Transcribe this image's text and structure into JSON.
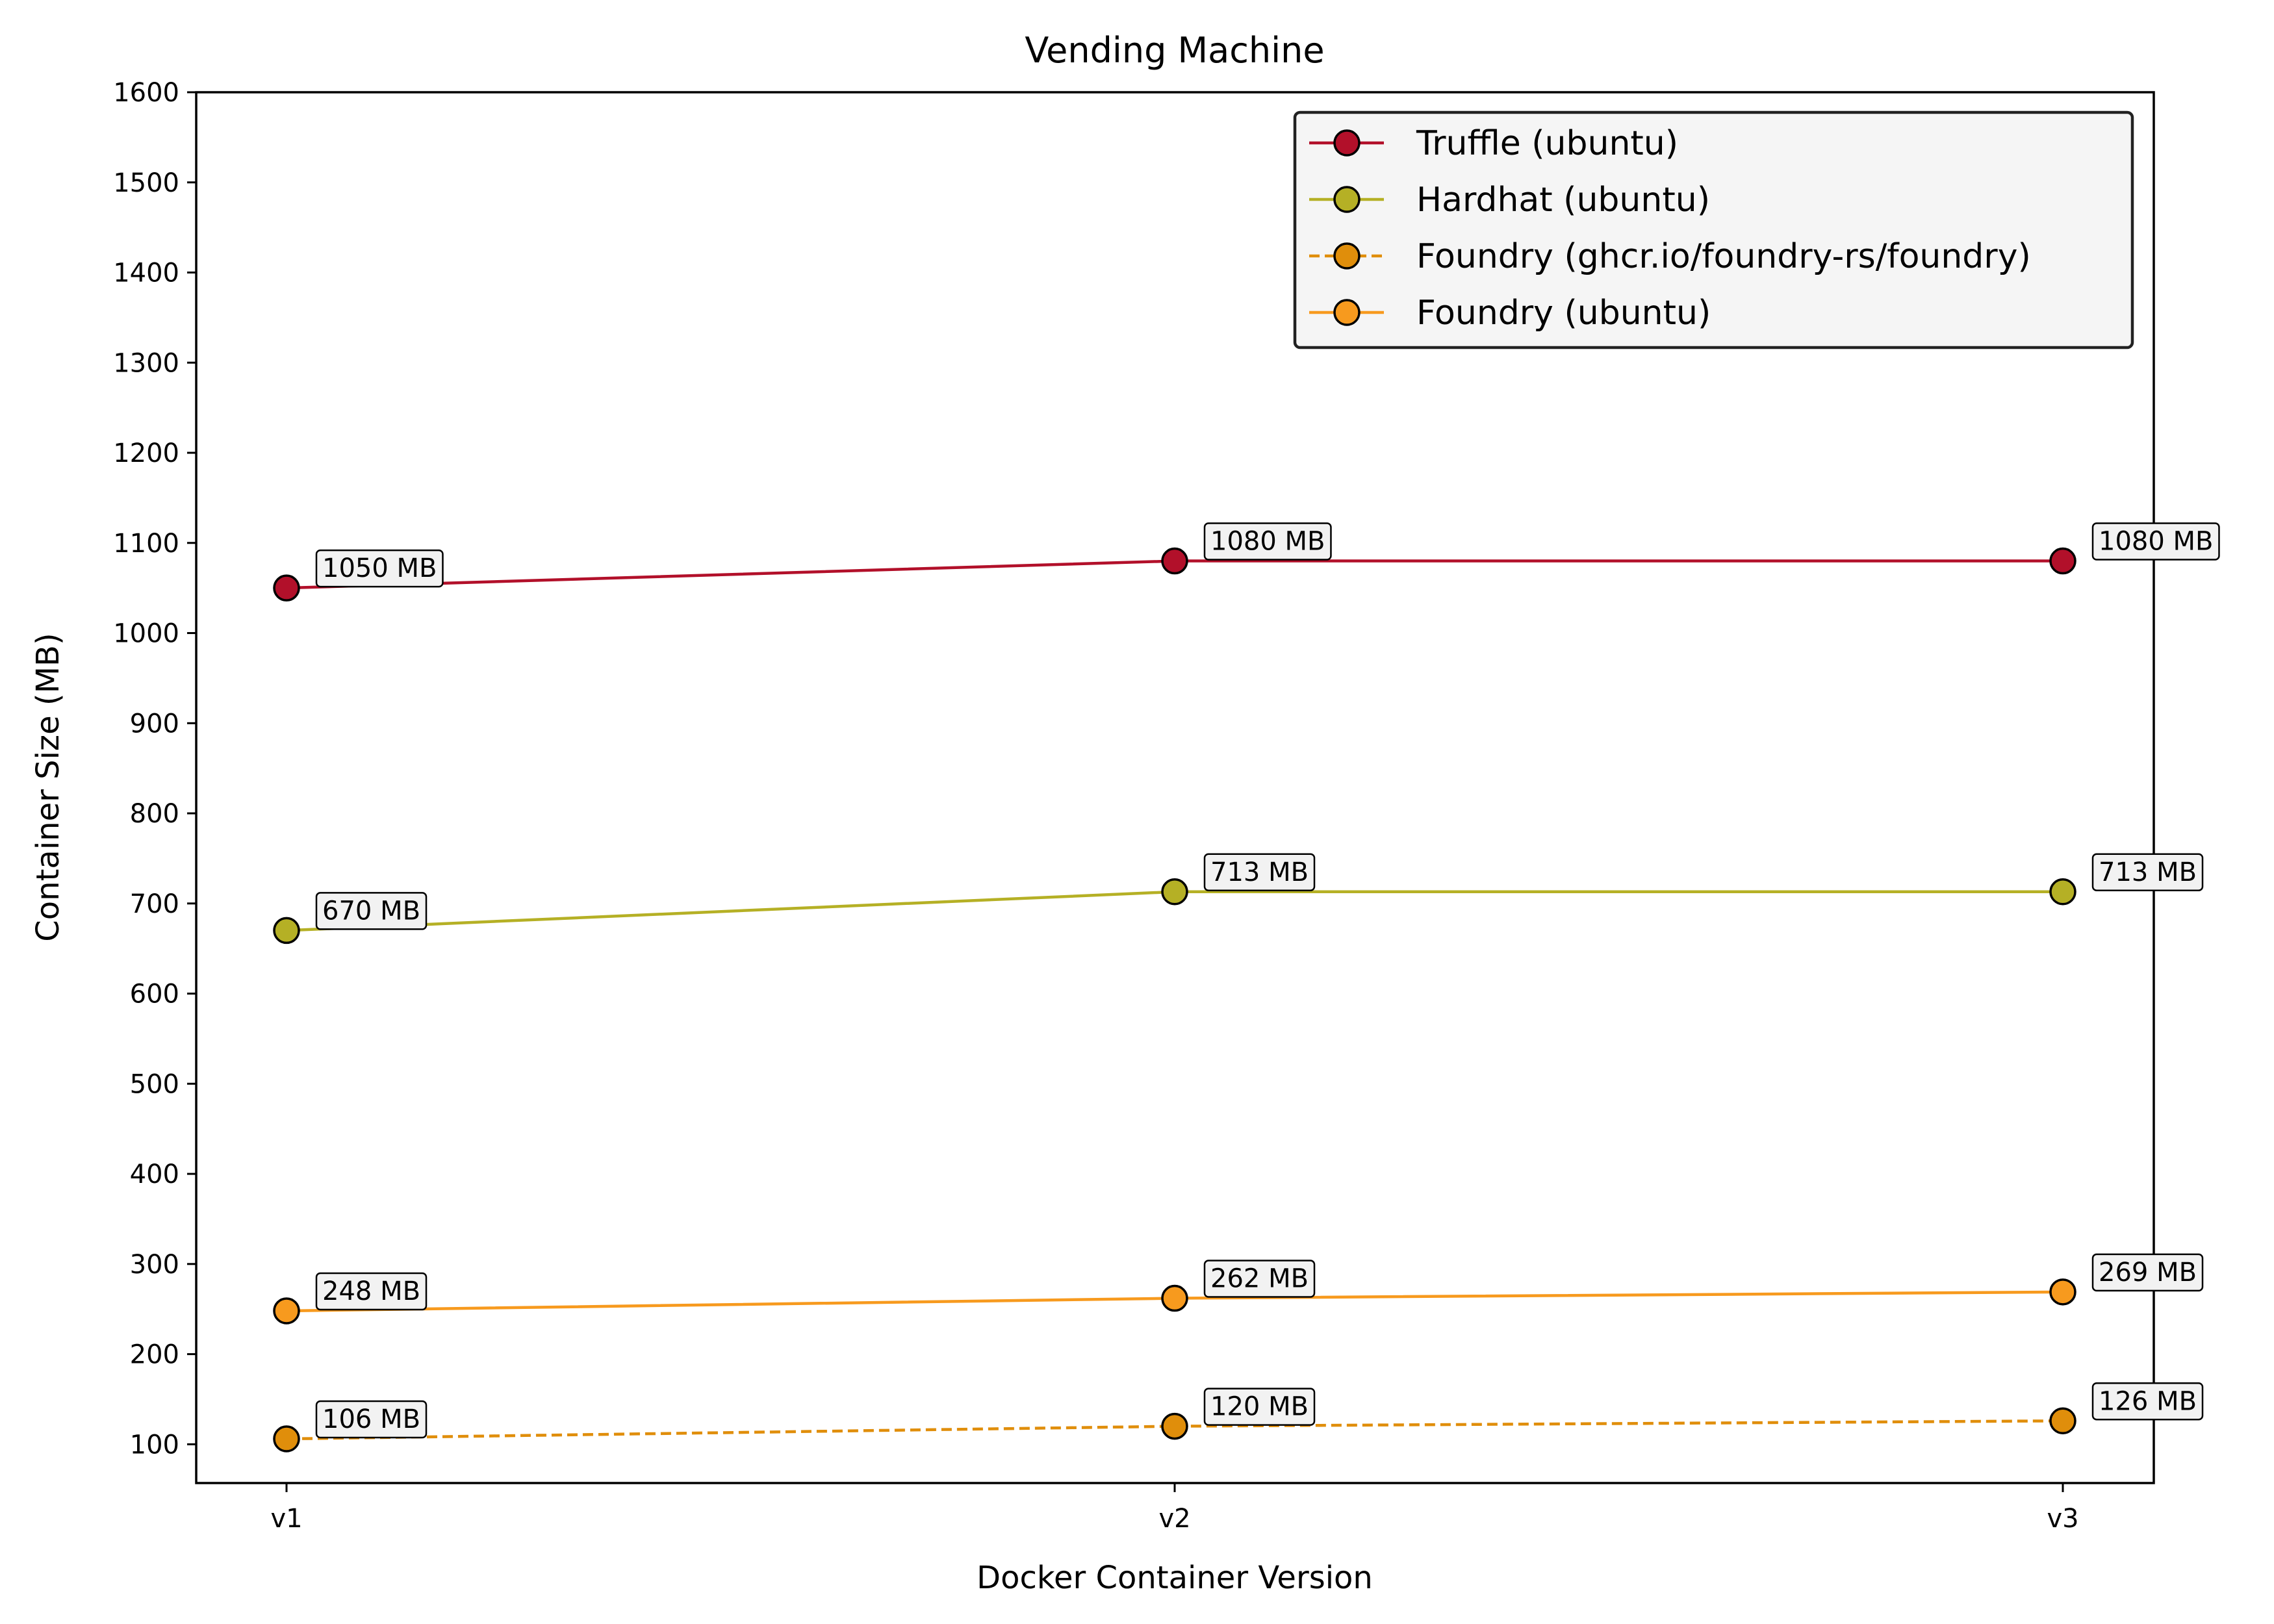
{
  "chart_data": {
    "type": "line",
    "title": "Vending Machine",
    "xlabel": "Docker Container Version",
    "ylabel": "Container Size (MB)",
    "categories": [
      "v1",
      "v2",
      "v3"
    ],
    "ylim": [
      57,
      1600
    ],
    "yticks": [
      100,
      200,
      300,
      400,
      500,
      600,
      700,
      800,
      900,
      1000,
      1100,
      1200,
      1300,
      1400,
      1500,
      1600
    ],
    "grid": false,
    "legend_position": "top-right",
    "series": [
      {
        "name": "Truffle (ubuntu)",
        "values": [
          1050,
          1080,
          1080
        ],
        "labels": [
          "1050 MB",
          "1080 MB",
          "1080 MB"
        ],
        "color": "#b2102a",
        "dash": "solid"
      },
      {
        "name": "Hardhat (ubuntu)",
        "values": [
          670,
          713,
          713
        ],
        "labels": [
          "670 MB",
          "713 MB",
          "713 MB"
        ],
        "color": "#b5b025",
        "dash": "solid"
      },
      {
        "name": "Foundry (ghcr.io/foundry-rs/foundry)",
        "values": [
          106,
          120,
          126
        ],
        "labels": [
          "106 MB",
          "120 MB",
          "126 MB"
        ],
        "color": "#e08e0b",
        "dash": "dashed"
      },
      {
        "name": "Foundry (ubuntu)",
        "values": [
          248,
          262,
          269
        ],
        "labels": [
          "248 MB",
          "262 MB",
          "269 MB"
        ],
        "color": "#f79a1e",
        "dash": "solid"
      }
    ]
  }
}
